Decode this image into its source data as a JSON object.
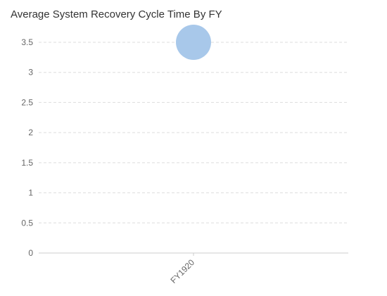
{
  "chart_data": {
    "type": "scatter",
    "title": "Average System Recovery Cycle Time By FY",
    "xlabel": "",
    "ylabel": "",
    "categories": [
      "FY1920"
    ],
    "values": [
      3.5
    ],
    "ylim": [
      0,
      3.5
    ],
    "yticks": [
      "0",
      "0.5",
      "1",
      "1.5",
      "2",
      "2.5",
      "3",
      "3.5"
    ],
    "grid": true,
    "legend": "none",
    "colors": {
      "bubble": "#a8c8ea",
      "grid": "#dddddd",
      "axis": "#cccccc",
      "text": "#666666",
      "title": "#333333"
    }
  }
}
